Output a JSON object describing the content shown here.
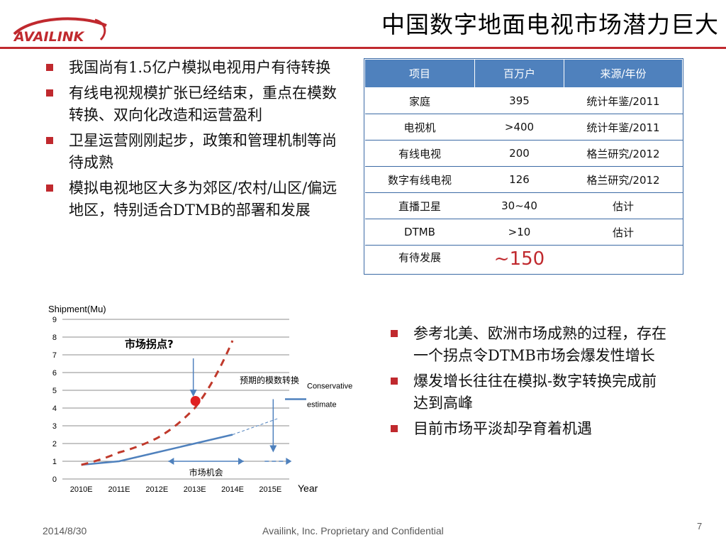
{
  "header": {
    "logo_text": "AVAILINK",
    "title": "中国数字地面电视市场潜力巨大",
    "rule_color": "#c0292e"
  },
  "left_bullets": [
    "我国尚有1.5亿户模拟电视用户有待转换",
    "有线电视规模扩张已经结束，重点在模数转换、双向化改造和运营盈利",
    "卫星运营刚刚起步，政策和管理机制等尚待成熟",
    "模拟电视地区大多为郊区/农村/山区/偏远地区，特别适合DTMB的部署和发展"
  ],
  "table": {
    "headers": [
      "项目",
      "百万户",
      "来源/年份"
    ],
    "rows": [
      [
        "家庭",
        "395",
        "统计年鉴/2011"
      ],
      [
        "电视机",
        ">400",
        "统计年鉴/2011"
      ],
      [
        "有线电视",
        "200",
        "格兰研究/2012"
      ],
      [
        "数字有线电视",
        "126",
        "格兰研究/2012"
      ],
      [
        "直播卫星",
        "30~40",
        "估计"
      ],
      [
        "DTMB",
        ">10",
        "估计"
      ],
      [
        "有待发展",
        "~150",
        ""
      ]
    ],
    "header_color": "#4f81bd",
    "highlight_color": "#c0292e"
  },
  "chart_data": {
    "type": "line",
    "ylabel": "Shipment(Mu)",
    "xlabel": "Year",
    "categories": [
      "2010E",
      "2011E",
      "2012E",
      "2013E",
      "2014E",
      "2015E"
    ],
    "ylim": [
      0,
      9
    ],
    "yticks": [
      0,
      1,
      2,
      3,
      4,
      5,
      6,
      7,
      8,
      9
    ],
    "grid": true,
    "series": [
      {
        "name": "Conservative estimate",
        "style": "solid",
        "color": "#4f81bd",
        "values": [
          0.8,
          1.0,
          1.5,
          2.0,
          2.5,
          null
        ],
        "extension": [
          [
            4,
            2.5
          ],
          [
            5,
            3.4
          ]
        ]
      },
      {
        "style": "dashed",
        "color": "#c0392b",
        "values": [
          0.8,
          1.5,
          2.3,
          4.0,
          7.8,
          null
        ]
      }
    ],
    "annotations": {
      "inflection_label": "市场拐点?",
      "inflection_point": [
        3,
        4.4
      ],
      "expected_label": "预期的模数转换",
      "opportunity_label": "市场机会",
      "opportunity_range": [
        2.3,
        4.3
      ]
    }
  },
  "right_bullets": [
    "参考北美、欧洲市场成熟的过程，存在一个拐点令DTMB市场会爆发性增长",
    "爆发增长往往在模拟-数字转换完成前达到高峰",
    "目前市场平淡却孕育着机遇"
  ],
  "footer": {
    "date": "2014/8/30",
    "confidential": "Availink, Inc. Proprietary and Confidential",
    "page_number": "7"
  }
}
